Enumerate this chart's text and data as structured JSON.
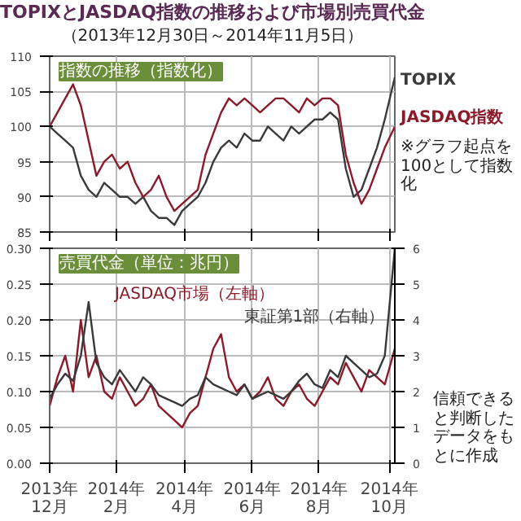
{
  "chart_data": [
    {
      "type": "line",
      "title": "TOPIXとJASDAQ指数の推移および市場別売買代金",
      "subtitle": "（2013年12月30日～2014年11月5日）",
      "annotations": [
        "指数の推移（指数化）",
        "※グラフ起点を100として指数化"
      ],
      "x": [
        "2013-12-30",
        "2014-01-06",
        "2014-01-13",
        "2014-01-20",
        "2014-01-27",
        "2014-02-03",
        "2014-02-10",
        "2014-02-17",
        "2014-02-24",
        "2014-03-03",
        "2014-03-10",
        "2014-03-17",
        "2014-03-24",
        "2014-03-31",
        "2014-04-07",
        "2014-04-14",
        "2014-04-21",
        "2014-04-28",
        "2014-05-05",
        "2014-05-12",
        "2014-05-19",
        "2014-05-26",
        "2014-06-02",
        "2014-06-09",
        "2014-06-16",
        "2014-06-23",
        "2014-06-30",
        "2014-07-07",
        "2014-07-14",
        "2014-07-21",
        "2014-07-28",
        "2014-08-04",
        "2014-08-11",
        "2014-08-18",
        "2014-08-25",
        "2014-09-01",
        "2014-09-08",
        "2014-09-15",
        "2014-09-22",
        "2014-09-29",
        "2014-10-06",
        "2014-10-13",
        "2014-10-20",
        "2014-10-27",
        "2014-11-05"
      ],
      "series": [
        {
          "name": "TOPIX",
          "color": "#3a3a3a",
          "values": [
            100,
            99,
            98,
            97,
            93,
            91,
            90,
            92,
            91,
            90,
            90,
            89,
            90,
            88,
            87,
            87,
            86,
            88,
            89,
            90,
            92,
            95,
            97,
            98,
            97,
            99,
            98,
            98,
            100,
            99,
            98,
            100,
            99,
            100,
            101,
            101,
            102,
            101,
            94,
            90,
            91,
            94,
            97,
            101,
            107
          ]
        },
        {
          "name": "JASDAQ指数",
          "color": "#8b1a2b",
          "values": [
            100,
            102,
            104,
            106,
            103,
            98,
            93,
            95,
            96,
            94,
            95,
            92,
            90,
            91,
            93,
            90,
            88,
            89,
            90,
            91,
            96,
            99,
            102,
            104,
            103,
            104,
            103,
            102,
            103,
            104,
            104,
            103,
            102,
            104,
            103,
            104,
            104,
            103,
            96,
            92,
            89,
            91,
            94,
            97,
            100
          ]
        }
      ],
      "xlim": [
        "2013-12-30",
        "2014-11-05"
      ],
      "xticks": [
        {
          "value": "2013-12-30",
          "label": "2013年12月"
        },
        {
          "value": "2014-02-28",
          "label": "2014年2月"
        },
        {
          "value": "2014-04-30",
          "label": "2014年4月"
        },
        {
          "value": "2014-06-30",
          "label": "2014年6月"
        },
        {
          "value": "2014-08-29",
          "label": "2014年8月"
        },
        {
          "value": "2014-10-31",
          "label": "2014年10月"
        }
      ],
      "ylim": [
        85,
        110
      ],
      "yticks": [
        85,
        90,
        95,
        100,
        105,
        110
      ],
      "tick_labels": "y",
      "grid": true
    },
    {
      "type": "line",
      "title": "売買代金（単位：兆円）",
      "annotations": [
        "信頼できると判断したデータをもとに作成"
      ],
      "x": [
        "2013-12-30",
        "2014-01-06",
        "2014-01-13",
        "2014-01-20",
        "2014-01-27",
        "2014-02-03",
        "2014-02-10",
        "2014-02-17",
        "2014-02-24",
        "2014-03-03",
        "2014-03-10",
        "2014-03-17",
        "2014-03-24",
        "2014-03-31",
        "2014-04-07",
        "2014-04-14",
        "2014-04-21",
        "2014-04-28",
        "2014-05-05",
        "2014-05-12",
        "2014-05-19",
        "2014-05-26",
        "2014-06-02",
        "2014-06-09",
        "2014-06-16",
        "2014-06-23",
        "2014-06-30",
        "2014-07-07",
        "2014-07-14",
        "2014-07-21",
        "2014-07-28",
        "2014-08-04",
        "2014-08-11",
        "2014-08-18",
        "2014-08-25",
        "2014-09-01",
        "2014-09-08",
        "2014-09-15",
        "2014-09-22",
        "2014-09-29",
        "2014-10-06",
        "2014-10-13",
        "2014-10-20",
        "2014-10-27",
        "2014-11-05"
      ],
      "series": [
        {
          "name": "JASDAQ市場（左軸）",
          "color": "#8b1a2b",
          "values": [
            0.08,
            0.12,
            0.15,
            0.1,
            0.2,
            0.12,
            0.15,
            0.1,
            0.09,
            0.12,
            0.1,
            0.08,
            0.09,
            0.11,
            0.08,
            0.07,
            0.06,
            0.05,
            0.07,
            0.08,
            0.12,
            0.16,
            0.18,
            0.12,
            0.1,
            0.11,
            0.09,
            0.1,
            0.12,
            0.09,
            0.08,
            0.1,
            0.11,
            0.09,
            0.08,
            0.1,
            0.12,
            0.11,
            0.14,
            0.12,
            0.1,
            0.13,
            0.12,
            0.11,
            0.16
          ]
        },
        {
          "name": "東証第1部（右軸）",
          "color": "#3a3a3a",
          "axis": "y2",
          "values": [
            1.8,
            2.2,
            2.5,
            2.3,
            3.0,
            4.5,
            2.8,
            2.4,
            2.2,
            2.6,
            2.3,
            2.0,
            2.4,
            2.2,
            1.9,
            1.8,
            1.7,
            1.6,
            1.8,
            1.9,
            2.4,
            2.2,
            2.1,
            2.0,
            1.9,
            2.2,
            1.8,
            1.9,
            2.0,
            1.9,
            1.8,
            2.0,
            2.3,
            2.5,
            2.2,
            2.1,
            2.6,
            2.4,
            3.0,
            2.8,
            2.6,
            2.4,
            2.5,
            3.0,
            6.0
          ]
        }
      ],
      "xlim": [
        "2013-12-30",
        "2014-11-05"
      ],
      "xticks": [
        {
          "value": "2013-12-30",
          "label": "2013年12月"
        },
        {
          "value": "2014-02-28",
          "label": "2014年2月"
        },
        {
          "value": "2014-04-30",
          "label": "2014年4月"
        },
        {
          "value": "2014-06-30",
          "label": "2014年6月"
        },
        {
          "value": "2014-08-29",
          "label": "2014年8月"
        },
        {
          "value": "2014-10-31",
          "label": "2014年10月"
        }
      ],
      "ylim": [
        0,
        0.3
      ],
      "yticks": [
        {
          "value": 0,
          "label": "0.00"
        },
        {
          "value": 0.05,
          "label": "0.05"
        },
        {
          "value": 0.1,
          "label": "0.10"
        },
        {
          "value": 0.15,
          "label": "0.15"
        },
        {
          "value": 0.2,
          "label": "0.20"
        },
        {
          "value": 0.25,
          "label": "0.25"
        },
        {
          "value": 0.3,
          "label": "0.30"
        }
      ],
      "y2lim": [
        0,
        6
      ],
      "y2ticks": [
        0,
        1,
        2,
        3,
        4,
        5,
        6
      ],
      "grid": true
    }
  ]
}
